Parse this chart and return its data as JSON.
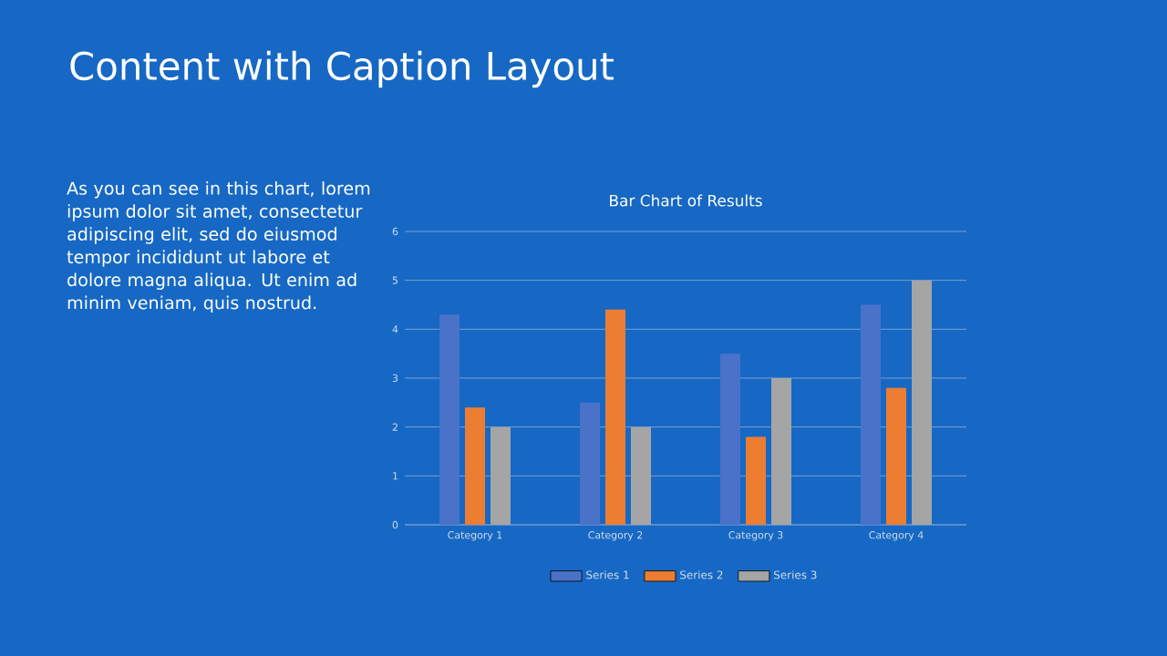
{
  "chart_data": {
    "type": "bar",
    "title": "Content with Caption Layout",
    "subtitle": "Bar Chart of Results",
    "annotations": [
      "As you can see in this chart, lorem ipsum dolor sit amet, consectetur adipiscing elit, sed do eiusmod tempor incididunt ut labore et dolore magna aliqua. Ut enim ad minim veniam, quis nostrud."
    ],
    "categories": [
      "Category 1",
      "Category 2",
      "Category 3",
      "Category 4"
    ],
    "series": [
      {
        "name": "Series 1",
        "color": "#4a72c8",
        "values": [
          4.3,
          2.5,
          3.5,
          4.5
        ]
      },
      {
        "name": "Series 2",
        "color": "#ed7d31",
        "values": [
          2.4,
          4.4,
          1.8,
          2.8
        ]
      },
      {
        "name": "Series 3",
        "color": "#a5a5a5",
        "values": [
          2,
          2,
          3,
          5
        ]
      }
    ],
    "ylim": [
      0,
      6
    ],
    "yticks": [
      0,
      1,
      2,
      3,
      4,
      5,
      6
    ],
    "grid": "y",
    "legend": "bottom"
  }
}
